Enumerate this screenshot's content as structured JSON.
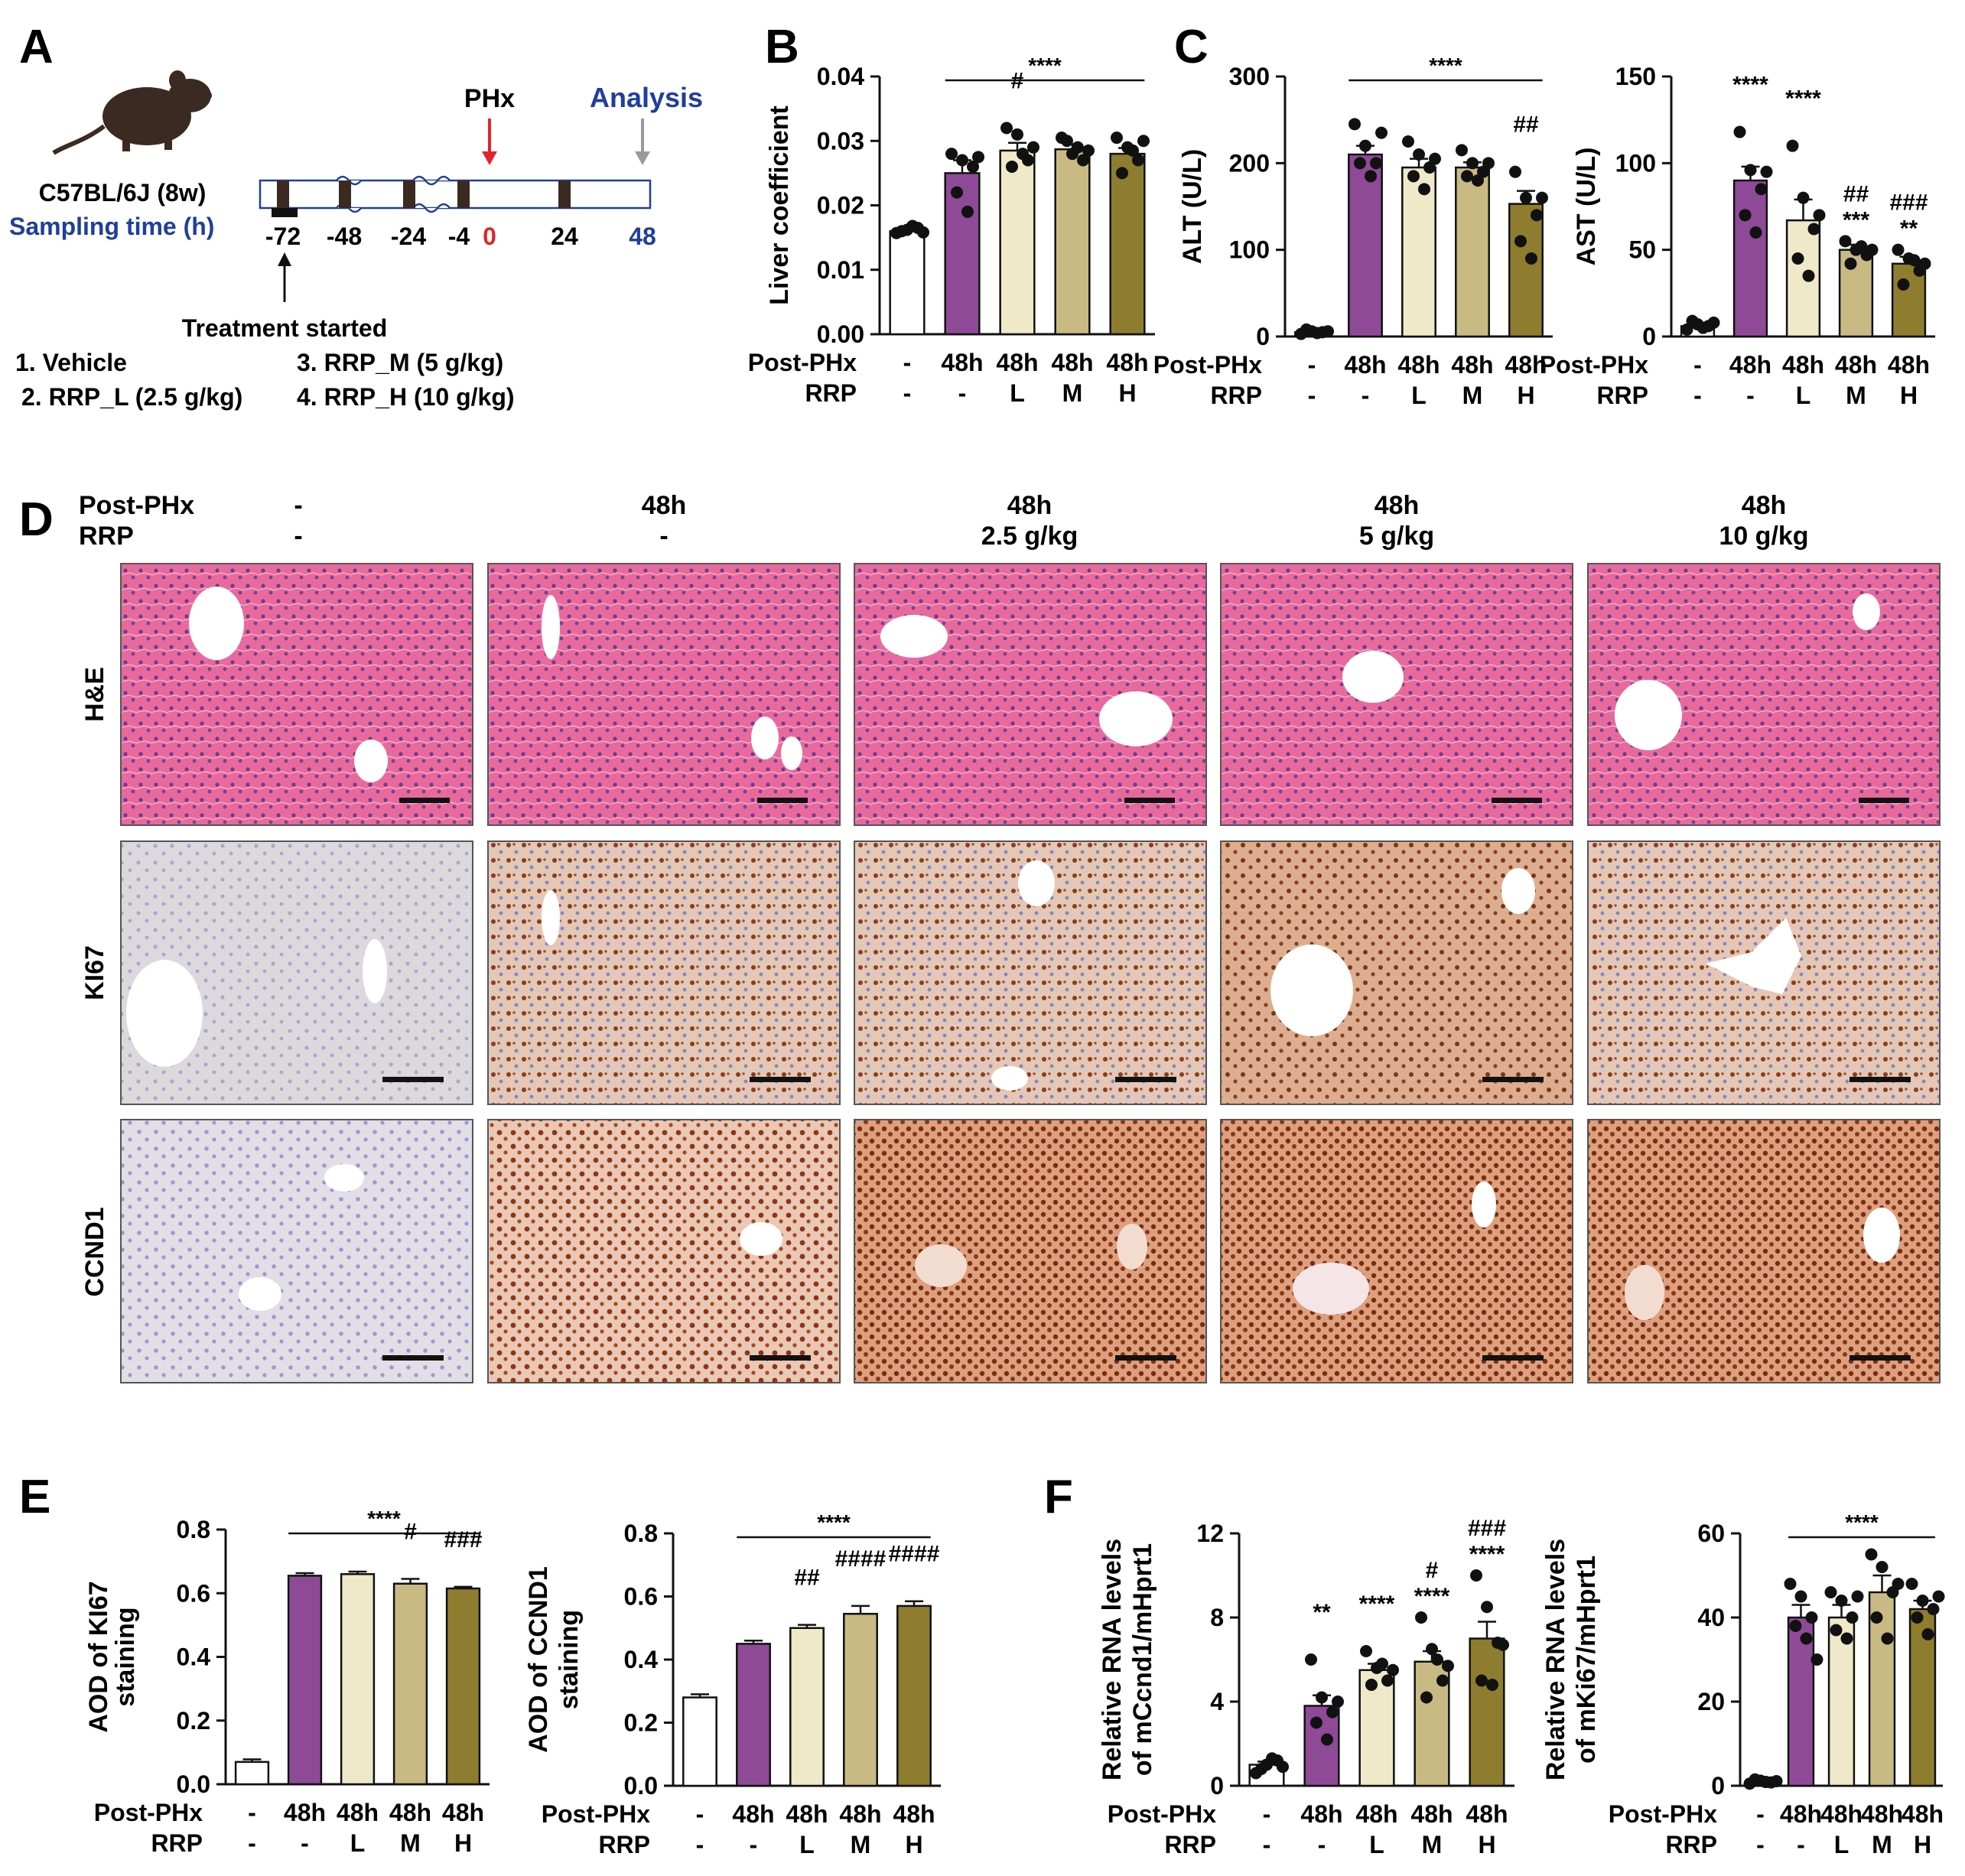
{
  "panel_letters": {
    "a": "A",
    "b": "B",
    "c": "C",
    "d": "D",
    "e": "E",
    "f": "F"
  },
  "colors": {
    "vehicle": "#ffffff",
    "phx": "#8e4a97",
    "rrp_l": "#f0e9c9",
    "rrp_m": "#c9ba84",
    "rrp_h": "#8e7d2f",
    "timeline_label": "#1f3f9b",
    "phx_arrow": "#e0262b",
    "analysis_arrow": "#9a9a9a"
  },
  "panel_a": {
    "strain": "C57BL/6J (8w)",
    "sampling_label": "Sampling time (h)",
    "phx_label": "PHx",
    "analysis_label": "Analysis",
    "times": [
      "-72",
      "-48",
      "-24",
      "-4",
      "0",
      "24",
      "48"
    ],
    "treatment_label": "Treatment started",
    "groups": [
      "1. Vehicle",
      "2. RRP_L (2.5 g/kg)",
      "3. RRP_M (5 g/kg)",
      "4. RRP_H (10 g/kg)"
    ]
  },
  "axis_groups": {
    "row1_label": "Post-PHx",
    "row2_label": "RRP",
    "row1": [
      "-",
      "48h",
      "48h",
      "48h",
      "48h"
    ],
    "row2": [
      "-",
      "-",
      "L",
      "M",
      "H"
    ]
  },
  "panel_d": {
    "header_row1": "Post-PHx",
    "header_row2": "RRP",
    "columns": [
      {
        "phx": "-",
        "rrp": "-"
      },
      {
        "phx": "48h",
        "rrp": "-"
      },
      {
        "phx": "48h",
        "rrp": "2.5 g/kg"
      },
      {
        "phx": "48h",
        "rrp": "5 g/kg"
      },
      {
        "phx": "48h",
        "rrp": "10 g/kg"
      }
    ],
    "rows": [
      "H&E",
      "KI67",
      "CCND1"
    ]
  },
  "chart_data": [
    {
      "id": "liver",
      "type": "bar",
      "ylabel": "Liver coefficient",
      "ylim": [
        0,
        0.04
      ],
      "ticks": [
        "0.00",
        "0.01",
        "0.02",
        "0.03",
        "0.04"
      ],
      "values": [
        0.016,
        0.025,
        0.0285,
        0.0287,
        0.028
      ],
      "errors": [
        0.0004,
        0.002,
        0.0012,
        0.0008,
        0.0009
      ],
      "points": [
        [
          0.0157,
          0.0162,
          0.0165,
          0.016,
          0.0168,
          0.0158
        ],
        [
          0.028,
          0.027,
          0.026,
          0.022,
          0.019,
          0.0275
        ],
        [
          0.032,
          0.031,
          0.027,
          0.026,
          0.028,
          0.029
        ],
        [
          0.0305,
          0.028,
          0.027,
          0.03,
          0.029,
          0.0285
        ],
        [
          0.0305,
          0.029,
          0.027,
          0.025,
          0.0285,
          0.03
        ]
      ],
      "annotations": [
        {
          "text": "****",
          "line": true,
          "from": 1,
          "to": 4
        }
      ],
      "markers": [
        {
          "bar": 2,
          "text": "#",
          "row": 0
        }
      ]
    },
    {
      "id": "alt",
      "type": "bar",
      "ylabel": "ALT (U/L)",
      "ylim": [
        0,
        300
      ],
      "ticks": [
        "0",
        "100",
        "200",
        "300"
      ],
      "values": [
        5,
        210,
        195,
        195,
        153
      ],
      "errors": [
        1.5,
        10,
        10,
        6,
        15
      ],
      "points": [
        [
          3,
          6,
          5,
          8,
          4,
          6
        ],
        [
          245,
          220,
          200,
          200,
          185,
          235
        ],
        [
          225,
          210,
          195,
          185,
          170,
          205
        ],
        [
          215,
          200,
          190,
          185,
          180,
          200
        ],
        [
          190,
          160,
          140,
          110,
          90,
          160
        ]
      ],
      "annotations": [
        {
          "text": "****",
          "line": true,
          "from": 1,
          "to": 4
        }
      ],
      "markers": [
        {
          "bar": 4,
          "text": "##",
          "row": 0
        }
      ]
    },
    {
      "id": "ast",
      "type": "bar",
      "ylabel": "AST (U/L)",
      "ylim": [
        0,
        150
      ],
      "ticks": [
        "0",
        "50",
        "100",
        "150"
      ],
      "values": [
        6,
        90,
        67,
        50,
        42
      ],
      "errors": [
        1,
        8,
        12,
        3,
        4
      ],
      "points": [
        [
          4,
          7,
          6,
          9,
          5,
          8
        ],
        [
          118,
          96,
          85,
          70,
          60,
          95
        ],
        [
          110,
          80,
          62,
          45,
          35,
          70
        ],
        [
          55,
          50,
          47,
          42,
          52,
          50
        ],
        [
          50,
          45,
          38,
          30,
          44,
          42
        ]
      ],
      "annotations": [],
      "markers": [
        {
          "bar": 1,
          "text": "****",
          "row": 0
        },
        {
          "bar": 2,
          "text": "****",
          "row": 0
        },
        {
          "bar": 3,
          "text": "##",
          "row": 0
        },
        {
          "bar": 3,
          "text": "***",
          "row": 1
        },
        {
          "bar": 4,
          "text": "###",
          "row": 0
        },
        {
          "bar": 4,
          "text": "**",
          "row": 1
        }
      ]
    },
    {
      "id": "aod_ki67",
      "type": "bar",
      "ylabel": [
        "AOD of KI67",
        "staining"
      ],
      "ylim": [
        0,
        0.8
      ],
      "ticks": [
        "0.0",
        "0.2",
        "0.4",
        "0.6",
        "0.8"
      ],
      "values": [
        0.07,
        0.655,
        0.66,
        0.63,
        0.615
      ],
      "errors": [
        0.008,
        0.008,
        0.008,
        0.015,
        0.005
      ],
      "points": [],
      "annotations": [
        {
          "text": "****",
          "line": true,
          "from": 1,
          "to": 4
        }
      ],
      "markers": [
        {
          "bar": 3,
          "text": "#",
          "row": 0
        },
        {
          "bar": 4,
          "text": "###",
          "row": 0
        }
      ]
    },
    {
      "id": "aod_ccnd1",
      "type": "bar",
      "ylabel": [
        "AOD of CCND1",
        "staining"
      ],
      "ylim": [
        0,
        0.8
      ],
      "ticks": [
        "0.0",
        "0.2",
        "0.4",
        "0.6",
        "0.8"
      ],
      "values": [
        0.28,
        0.45,
        0.5,
        0.545,
        0.57
      ],
      "errors": [
        0.01,
        0.01,
        0.01,
        0.025,
        0.015
      ],
      "points": [],
      "annotations": [
        {
          "text": "****",
          "line": true,
          "from": 1,
          "to": 4
        }
      ],
      "markers": [
        {
          "bar": 2,
          "text": "##",
          "row": 0
        },
        {
          "bar": 3,
          "text": "####",
          "row": 0
        },
        {
          "bar": 4,
          "text": "####",
          "row": 0
        }
      ]
    },
    {
      "id": "ccnd1_rna",
      "type": "bar",
      "ylabel": [
        "Relative RNA levels",
        "of mCcnd1/mHprt1"
      ],
      "ylim": [
        0,
        12
      ],
      "ticks": [
        "0",
        "4",
        "8",
        "12"
      ],
      "values": [
        1.0,
        3.8,
        5.5,
        5.9,
        7.0
      ],
      "errors": [
        0.15,
        0.5,
        0.3,
        0.5,
        0.8
      ],
      "points": [
        [
          0.6,
          1.0,
          1.2,
          0.8,
          1.3,
          0.9
        ],
        [
          6.0,
          4.2,
          3.5,
          3.0,
          2.2,
          4.0
        ],
        [
          6.4,
          5.6,
          5.0,
          4.8,
          5.8,
          5.5
        ],
        [
          8.0,
          6.5,
          5.0,
          4.2,
          6.0,
          5.7
        ],
        [
          10.0,
          8.5,
          6.8,
          5.0,
          4.8,
          6.7
        ]
      ],
      "annotations": [],
      "markers": [
        {
          "bar": 1,
          "text": "**",
          "row": 0
        },
        {
          "bar": 2,
          "text": "****",
          "row": 0
        },
        {
          "bar": 3,
          "text": "#",
          "row": 0
        },
        {
          "bar": 3,
          "text": "****",
          "row": 1
        },
        {
          "bar": 4,
          "text": "###",
          "row": 0
        },
        {
          "bar": 4,
          "text": "****",
          "row": 1
        }
      ]
    },
    {
      "id": "ki67_rna",
      "type": "bar",
      "ylabel": [
        "Relative RNA levels",
        "of mKi67/mHprt1"
      ],
      "ylim": [
        0,
        60
      ],
      "ticks": [
        "0",
        "20",
        "40",
        "60"
      ],
      "values": [
        1,
        40,
        40,
        46,
        42
      ],
      "errors": [
        0.3,
        3,
        3,
        4,
        2
      ],
      "points": [
        [
          0.5,
          1.2,
          0.8,
          1.5,
          0.9,
          1.1
        ],
        [
          48,
          45,
          40,
          38,
          35,
          30
        ],
        [
          46,
          44,
          40,
          37,
          35,
          45
        ],
        [
          55,
          52,
          46,
          40,
          35,
          48
        ],
        [
          48,
          44,
          42,
          40,
          36,
          45
        ]
      ],
      "annotations": [
        {
          "text": "****",
          "line": true,
          "from": 1,
          "to": 4
        }
      ],
      "markers": []
    }
  ]
}
